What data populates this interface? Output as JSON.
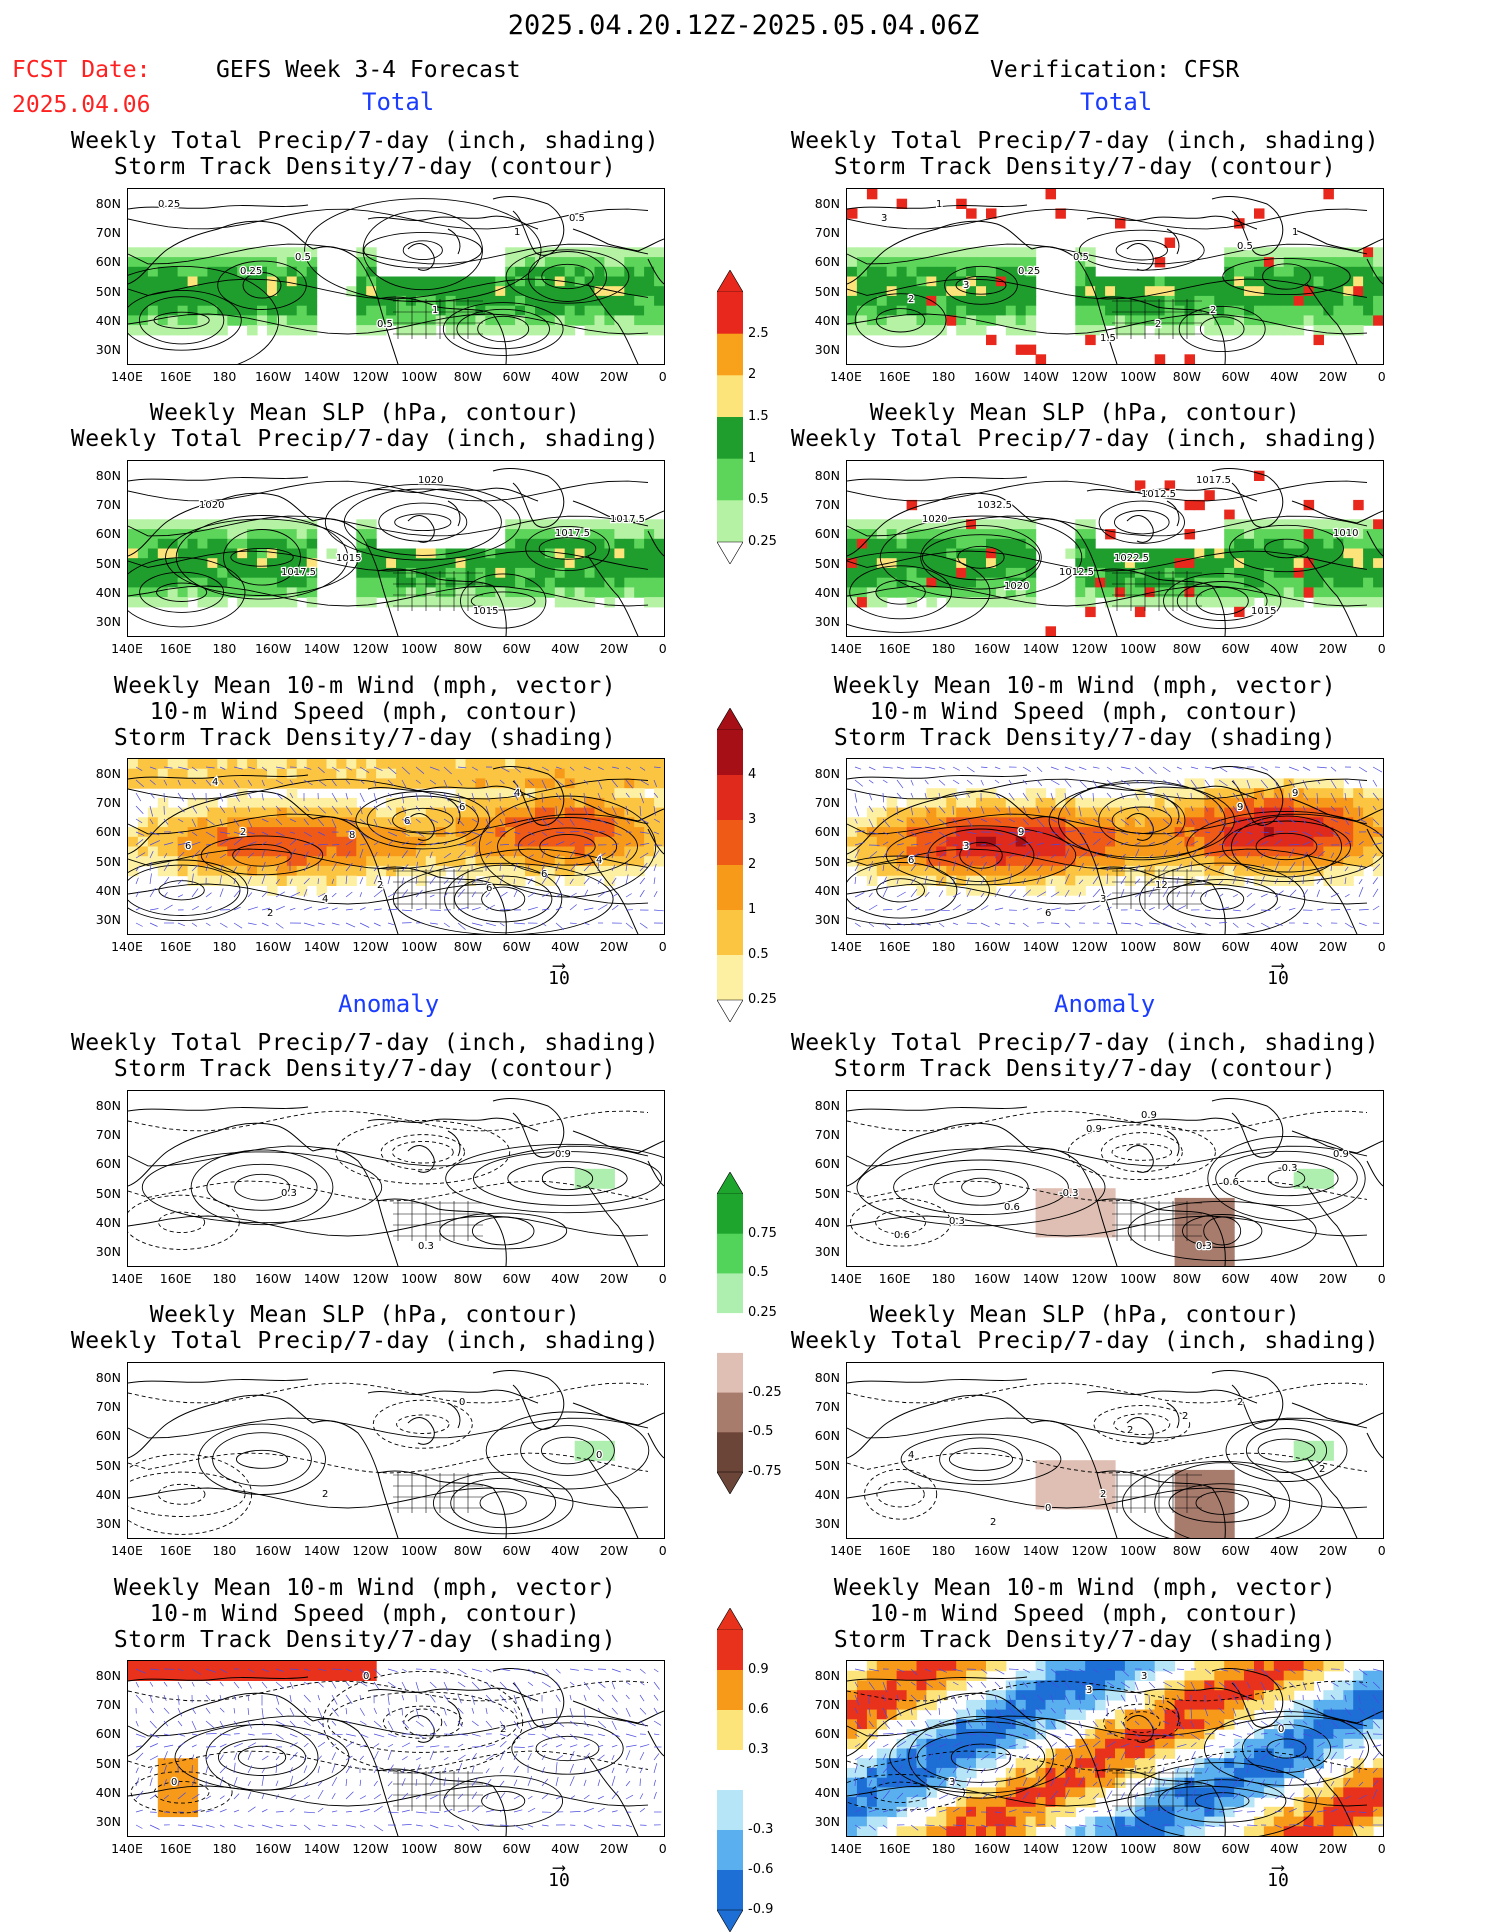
{
  "header": {
    "date_range": "2025.04.20.12Z-2025.05.04.06Z",
    "fcst_label": "FCST Date:",
    "fcst_date": "2025.04.06",
    "forecast_title": "GEFS Week 3-4 Forecast",
    "verification_title": "Verification: CFSR"
  },
  "sections": {
    "total": "Total",
    "anomaly": "Anomaly"
  },
  "panel_titles": {
    "precip_storm": [
      "Weekly Total Precip/7-day (inch, shading)",
      "Storm Track Density/7-day (contour)"
    ],
    "slp_precip": [
      "Weekly Mean SLP (hPa, contour)",
      "Weekly Total Precip/7-day (inch, shading)"
    ],
    "wind_storm": [
      "Weekly Mean 10-m Wind (mph, vector)",
      "10-m Wind Speed (mph, contour)",
      "Storm Track Density/7-day (shading)"
    ]
  },
  "axes": {
    "lat": [
      "80N",
      "70N",
      "60N",
      "50N",
      "40N",
      "30N"
    ],
    "lon": [
      "140E",
      "160E",
      "180",
      "160W",
      "140W",
      "120W",
      "100W",
      "80W",
      "60W",
      "40W",
      "20W",
      "0"
    ]
  },
  "vector_ref": "10",
  "colorbars": {
    "precip_total": {
      "labels": [
        "2.5",
        "2",
        "1.5",
        "1",
        "0.5",
        "0.25"
      ],
      "colors": [
        "#e8281c",
        "#f7a21a",
        "#fde47a",
        "#1f9e2d",
        "#5dd55a",
        "#b5f2a4"
      ]
    },
    "storm_total": {
      "labels": [
        "4",
        "3",
        "2",
        "1",
        "0.5",
        "0.25"
      ],
      "colors": [
        "#a50f15",
        "#e02a1c",
        "#f05a17",
        "#f79a1a",
        "#fbc542",
        "#fdf0a2"
      ]
    },
    "precip_anom": {
      "labels": [
        "0.75",
        "0.5",
        "0.25",
        "-0.25",
        "-0.5",
        "-0.75"
      ],
      "colors": [
        "#1ea52d",
        "#52d35a",
        "#aeeeae",
        "#ffffff",
        "#dfbfb3",
        "#a87c6d",
        "#6b4537"
      ]
    },
    "storm_anom": {
      "labels": [
        "0.9",
        "0.6",
        "0.3",
        "-0.3",
        "-0.6",
        "-0.9"
      ],
      "colors": [
        "#e8321c",
        "#f79a1a",
        "#fde47a",
        "#ffffff",
        "#b6e5f7",
        "#5ab0ef",
        "#1d6fd6"
      ]
    }
  },
  "chart_data": [
    {
      "type": "heatmap",
      "panel": "forecast-total-precip-storm",
      "title": "Weekly Total Precip/7-day (inch, shading) / Storm Track Density/7-day (contour)",
      "contour_labels": [
        "0.25",
        "0.5",
        "1",
        "0.5",
        "0.25",
        "0.5",
        "1"
      ]
    },
    {
      "type": "heatmap",
      "panel": "forecast-total-slp-precip",
      "title": "Weekly Mean SLP (hPa, contour) / Weekly Total Precip/7-day (inch, shading)",
      "contour_labels": [
        "1020",
        "1015",
        "1015",
        "1017.5",
        "1017.5",
        "1020",
        "1017.5"
      ]
    },
    {
      "type": "heatmap",
      "panel": "forecast-total-wind-storm",
      "title": "Weekly Mean 10-m Wind (mph, vector) / 10-m Wind Speed (mph, contour) / Storm Track Density/7-day (shading)",
      "contour_labels": [
        "2",
        "2",
        "4",
        "6",
        "4",
        "6",
        "4",
        "2",
        "6",
        "6",
        "4",
        "8",
        "6"
      ]
    },
    {
      "type": "heatmap",
      "panel": "verification-total-precip-storm",
      "title": "Weekly Total Precip/7-day (inch, shading) / Storm Track Density/7-day (contour)",
      "contour_labels": [
        "1",
        "0.5",
        "2",
        "3",
        "0.25",
        "2",
        "1",
        "3",
        "1.5",
        "0.5",
        "2"
      ]
    },
    {
      "type": "heatmap",
      "panel": "verification-total-slp-precip",
      "title": "Weekly Mean SLP (hPa, contour) / Weekly Total Precip/7-day (inch, shading)",
      "contour_labels": [
        "1032.5",
        "1022.5",
        "1015",
        "1020",
        "1012.5",
        "1017.5",
        "1010",
        "1020",
        "1012.5"
      ]
    },
    {
      "type": "heatmap",
      "panel": "verification-total-wind-storm",
      "title": "Weekly Mean 10-m Wind (mph, vector) / 10-m Wind Speed (mph, contour) / Storm Track Density/7-day (shading)",
      "contour_labels": [
        "9",
        "12",
        "9",
        "3",
        "3",
        "9",
        "6",
        "6"
      ]
    },
    {
      "type": "heatmap",
      "panel": "forecast-anomaly-precip-storm",
      "title": "Weekly Total Precip/7-day (inch, shading) / Storm Track Density/7-day (contour)",
      "contour_labels": [
        "0.3",
        "0.3",
        "0.9"
      ]
    },
    {
      "type": "heatmap",
      "panel": "forecast-anomaly-slp-precip",
      "title": "Weekly Mean SLP (hPa, contour) / Weekly Total Precip/7-day (inch, shading)",
      "contour_labels": [
        "2",
        "0",
        "0"
      ]
    },
    {
      "type": "heatmap",
      "panel": "forecast-anomaly-wind-storm",
      "title": "Weekly Mean 10-m Wind (mph, vector) / 10-m Wind Speed (mph, contour) / Storm Track Density/7-day (shading)",
      "contour_labels": [
        "0",
        "2",
        "0"
      ]
    },
    {
      "type": "heatmap",
      "panel": "verification-anomaly-precip-storm",
      "title": "Weekly Total Precip/7-day (inch, shading) / Storm Track Density/7-day (contour)",
      "contour_labels": [
        "-0.3",
        "0.3",
        "0.9",
        "0.6",
        "0.9",
        "-0.3",
        "0.3",
        "0.9",
        "0.6",
        "0.6"
      ]
    },
    {
      "type": "heatmap",
      "panel": "verification-anomaly-slp-precip",
      "title": "Weekly Mean SLP (hPa, contour) / Weekly Total Precip/7-day (inch, shading)",
      "contour_labels": [
        "2",
        "2",
        "4",
        "0",
        "2",
        "2",
        "2",
        "2"
      ]
    },
    {
      "type": "heatmap",
      "panel": "verification-anomaly-wind-storm",
      "title": "Weekly Mean 10-m Wind (mph, vector) / 10-m Wind Speed (mph, contour) / Storm Track Density/7-day (shading)",
      "contour_labels": [
        "3",
        "0",
        "3",
        "3"
      ]
    }
  ]
}
